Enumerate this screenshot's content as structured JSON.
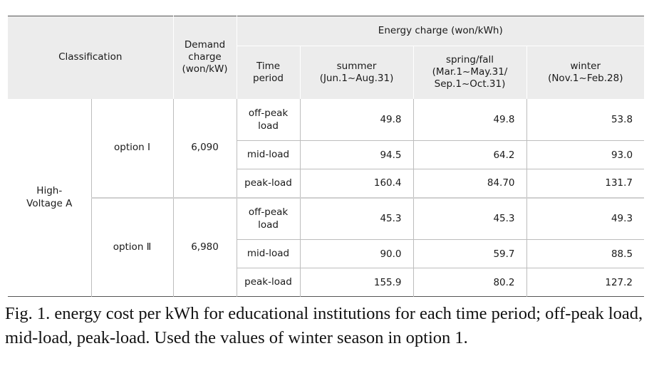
{
  "header": {
    "classification": "Classification",
    "demand": [
      "Demand",
      "charge",
      "(won/kW)"
    ],
    "energy": "Energy charge (won/kWh)",
    "time": [
      "Time",
      "period"
    ],
    "summer": [
      "summer",
      "(Jun.1~Aug.31)"
    ],
    "spring": [
      "spring/fall",
      "(Mar.1~May.31/",
      "Sep.1~Oct.31)"
    ],
    "winter": [
      "winter",
      "(Nov.1~Feb.28)"
    ]
  },
  "category": [
    "High-",
    "Voltage A"
  ],
  "options": [
    {
      "label": "option Ⅰ",
      "demand": "6,090",
      "rows": [
        {
          "period": [
            "off-peak",
            "load"
          ],
          "summer": "49.8",
          "spring": "49.8",
          "winter": "53.8"
        },
        {
          "period": [
            "mid-load"
          ],
          "summer": "94.5",
          "spring": "64.2",
          "winter": "93.0"
        },
        {
          "period": [
            "peak-load"
          ],
          "summer": "160.4",
          "spring": "84.70",
          "winter": "131.7"
        }
      ]
    },
    {
      "label": "option Ⅱ",
      "demand": "6,980",
      "rows": [
        {
          "period": [
            "off-peak",
            "load"
          ],
          "summer": "45.3",
          "spring": "45.3",
          "winter": "49.3"
        },
        {
          "period": [
            "mid-load"
          ],
          "summer": "90.0",
          "spring": "59.7",
          "winter": "88.5"
        },
        {
          "period": [
            "peak-load"
          ],
          "summer": "155.9",
          "spring": "80.2",
          "winter": "127.2"
        }
      ]
    }
  ],
  "caption": "Fig. 1. energy cost per kWh for educational institutions for each time period; off-peak load, mid-load, peak-load. Used the values of winter season in option 1."
}
